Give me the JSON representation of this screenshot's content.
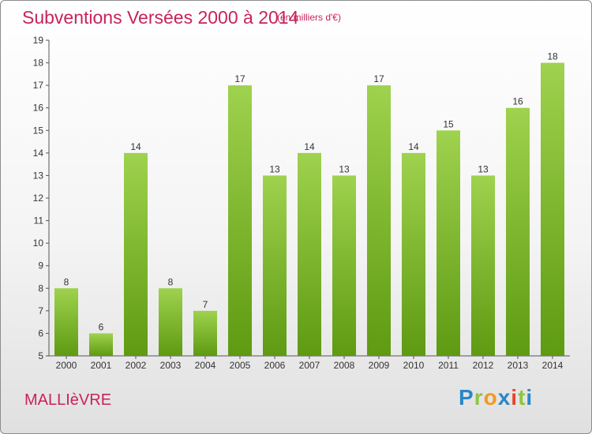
{
  "header": {
    "title": "Subventions Versées 2000 à 2014",
    "subtitle": "(en milliers d'€)"
  },
  "footer": {
    "commune": "MALLIèVRE",
    "brand": "Proxiti"
  },
  "colors": {
    "title": "#c8235a",
    "bar_top": "#9fd24e",
    "bar_bottom": "#5e9a12",
    "axis": "#555555"
  },
  "chart_data": {
    "type": "bar",
    "categories": [
      "2000",
      "2001",
      "2002",
      "2003",
      "2004",
      "2005",
      "2006",
      "2007",
      "2008",
      "2009",
      "2010",
      "2011",
      "2012",
      "2013",
      "2014"
    ],
    "values": [
      8,
      6,
      14,
      8,
      7,
      17,
      13,
      14,
      13,
      17,
      14,
      15,
      13,
      16,
      18
    ],
    "ylim": [
      5,
      19
    ],
    "yticks": [
      5,
      6,
      7,
      8,
      9,
      10,
      11,
      12,
      13,
      14,
      15,
      16,
      17,
      18,
      19
    ],
    "grid": false,
    "data_labels": true
  }
}
